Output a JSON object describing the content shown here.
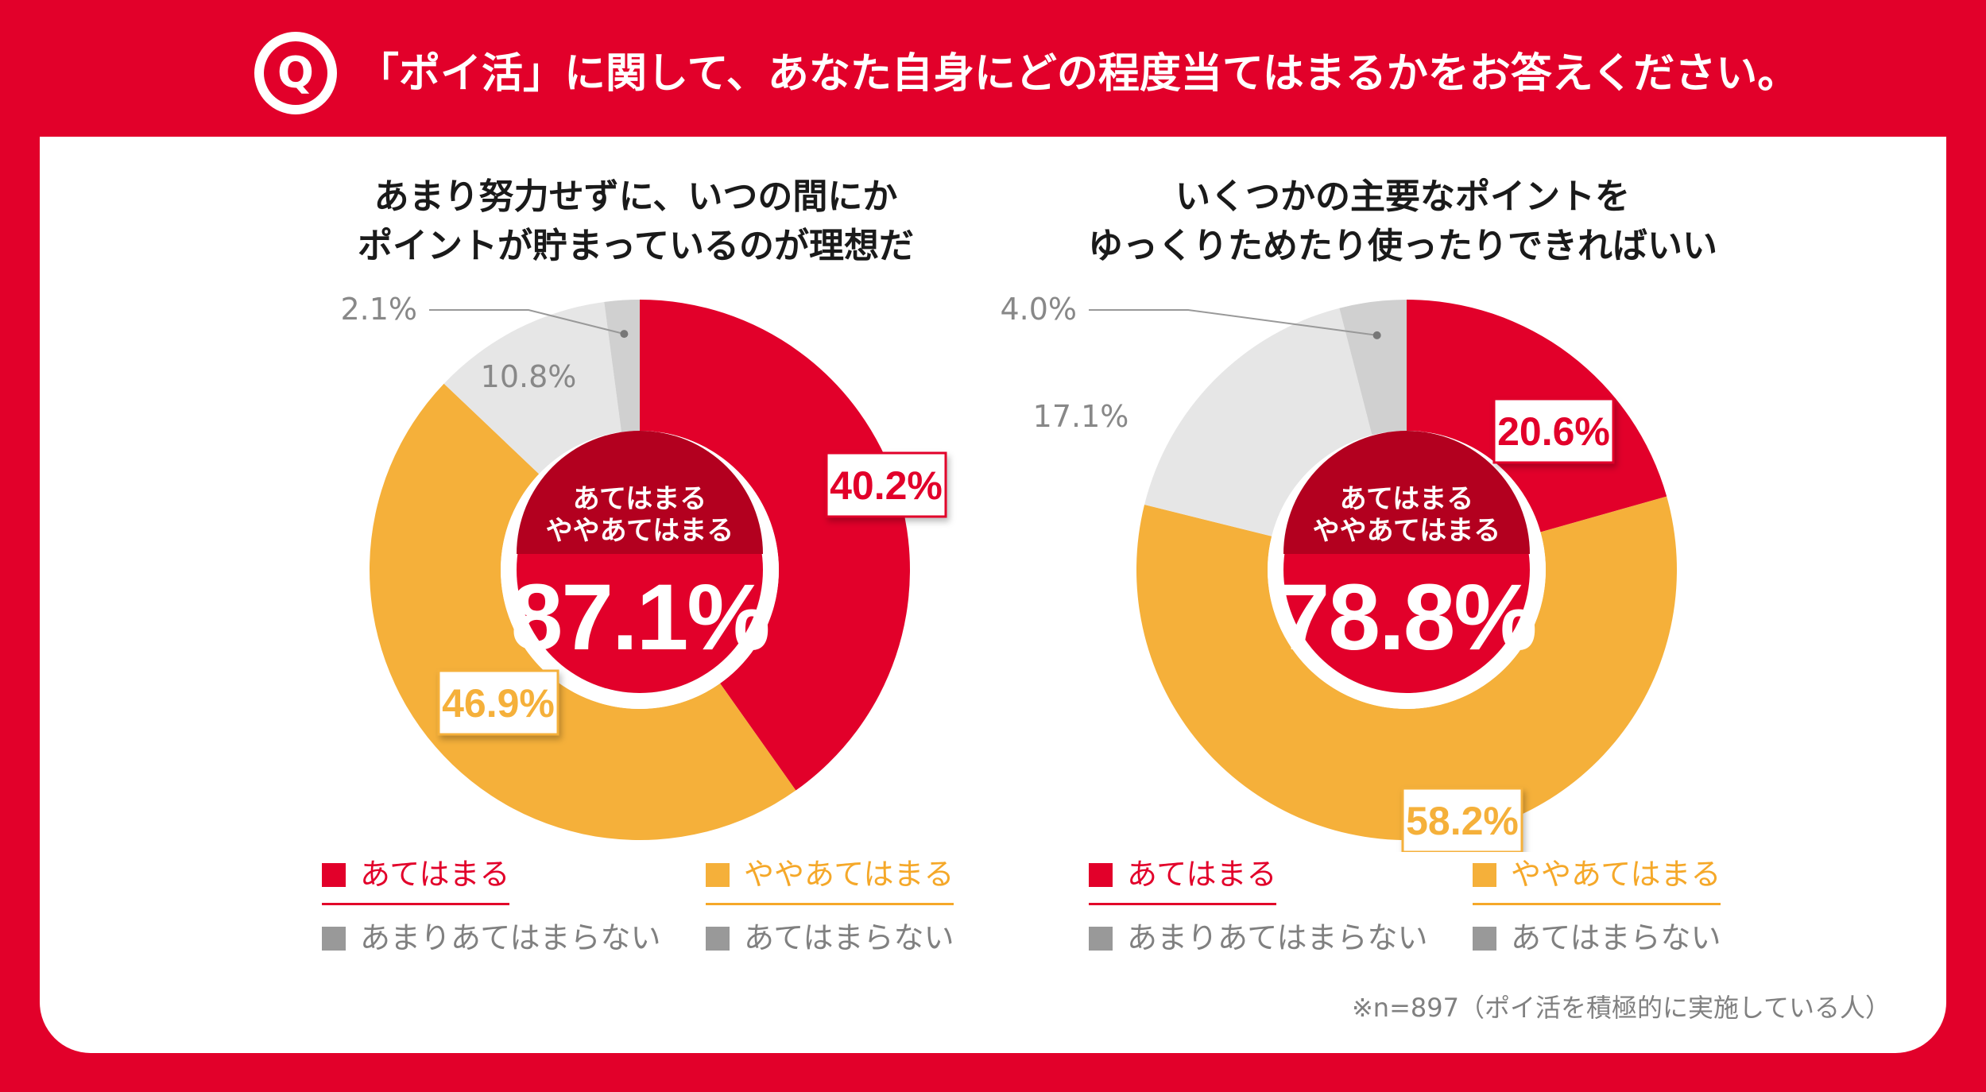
{
  "question": "「ポイ活」に関して、あなた自身にどの程度当てはまるかをお答えください。",
  "badge": "Q",
  "colors": {
    "red": "#e2002a",
    "yellow": "#f5b03a",
    "light_gray": "#e6e6e6",
    "mid_gray": "#d0d0d0",
    "dark_red": "#b3001f"
  },
  "center_label_line1": "あてはまる",
  "center_label_line2": "ややあてはまる",
  "legend": {
    "item1": "あてはまる",
    "item2": "ややあてはまる",
    "item3": "あまりあてはまらない",
    "item4": "あてはまらない"
  },
  "footnote": "※n=897（ポイ活を積極的に実施している人）",
  "chart_data": [
    {
      "type": "pie",
      "title_line1": "あまり努力せずに、いつの間にか",
      "title_line2": "ポイントが貯まっているのが理想だ",
      "categories": [
        "あてはまる",
        "ややあてはまる",
        "あまりあてはまらない",
        "あてはまらない"
      ],
      "values": [
        40.2,
        46.9,
        10.8,
        2.1
      ],
      "labels": [
        "40.2%",
        "46.9%",
        "10.8%",
        "2.1%"
      ],
      "total": "87.1%",
      "total_value": 87.1
    },
    {
      "type": "pie",
      "title_line1": "いくつかの主要なポイントを",
      "title_line2": "ゆっくりためたり使ったりできればいい",
      "categories": [
        "あてはまる",
        "ややあてはまる",
        "あまりあてはまらない",
        "あてはまらない"
      ],
      "values": [
        20.6,
        58.2,
        17.1,
        4.0
      ],
      "labels": [
        "20.6%",
        "58.2%",
        "17.1%",
        "4.0%"
      ],
      "total": "78.8%",
      "total_value": 78.8
    }
  ]
}
